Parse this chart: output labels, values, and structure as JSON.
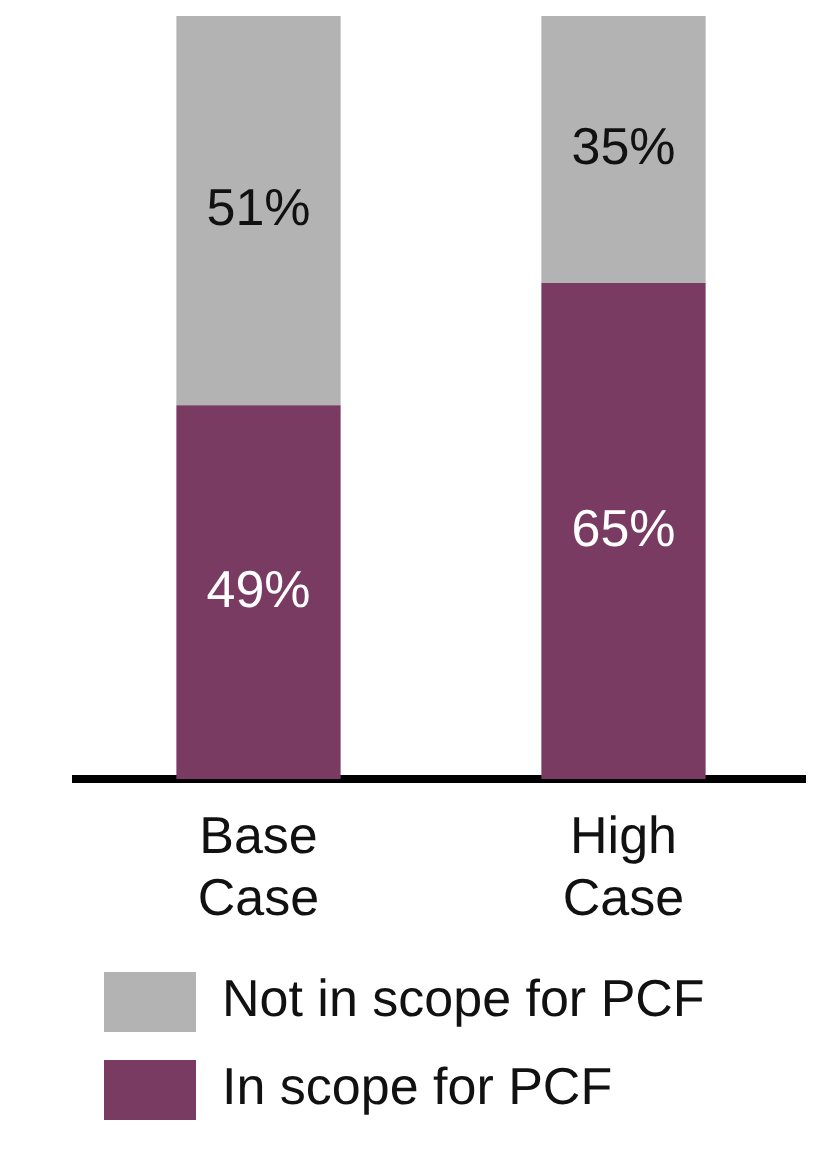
{
  "chart_data": {
    "type": "bar",
    "stacked": true,
    "categories": [
      "Base Case",
      "High Case"
    ],
    "series": [
      {
        "name": "In scope for PCF",
        "color": "#7a3b63",
        "values": [
          49,
          65
        ],
        "value_labels": [
          "49%",
          "65%"
        ]
      },
      {
        "name": "Not in scope for PCF",
        "color": "#b3b3b3",
        "values": [
          51,
          35
        ],
        "value_labels": [
          "51%",
          "35%"
        ]
      }
    ],
    "legend": "bottom"
  }
}
